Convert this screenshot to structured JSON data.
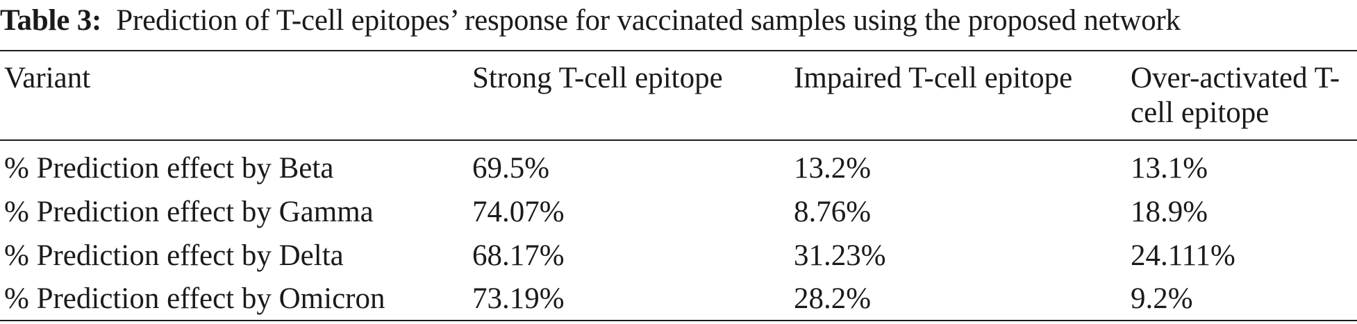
{
  "caption": {
    "label": "Table 3:",
    "text": "Prediction of T-cell epitopes’ response for vaccinated samples using the proposed network"
  },
  "table": {
    "headers": [
      "Variant",
      "Strong T-cell epitope",
      "Impaired T-cell epitope",
      "Over-activated T-cell epitope"
    ],
    "rows": [
      [
        "% Prediction effect by Beta",
        "69.5%",
        "13.2%",
        "13.1%"
      ],
      [
        "% Prediction effect by Gamma",
        "74.07%",
        "8.76%",
        "18.9%"
      ],
      [
        "% Prediction effect by Delta",
        "68.17%",
        "31.23%",
        "24.111%"
      ],
      [
        "% Prediction effect by Omicron",
        "73.19%",
        "28.2%",
        "9.2%"
      ]
    ]
  }
}
